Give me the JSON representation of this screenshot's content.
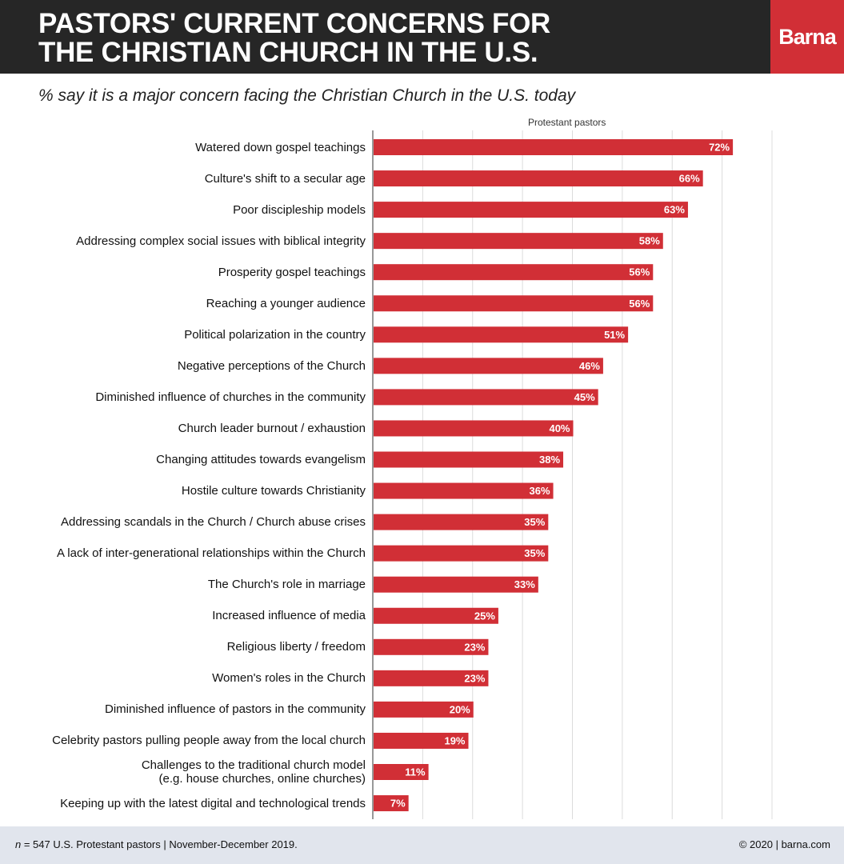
{
  "header": {
    "title_line1": "PASTORS' CURRENT CONCERNS FOR",
    "title_line2": "THE CHRISTIAN CHURCH IN THE U.S.",
    "logo": "Barna"
  },
  "colors": {
    "bar": "#d12f36",
    "header": "#262626",
    "grid": "#dcdcdc"
  },
  "chart_data": {
    "type": "bar",
    "orientation": "horizontal",
    "title": "% say it is a major concern facing the Christian Church in the U.S. today",
    "series_name": "Protestant pastors",
    "xlim": [
      0,
      80
    ],
    "grid": true,
    "categories": [
      "Watered down gospel teachings",
      "Culture's shift to a secular age",
      "Poor discipleship models",
      "Addressing complex social issues with biblical integrity",
      "Prosperity gospel teachings",
      "Reaching a younger audience",
      "Political polarization in the country",
      "Negative perceptions of the Church",
      "Diminished influence of churches in the community",
      "Church leader burnout / exhaustion",
      "Changing attitudes towards evangelism",
      "Hostile culture towards Christianity",
      "Addressing scandals in the Church / Church abuse crises",
      "A lack of inter-generational relationships within the Church",
      "The Church's role in marriage",
      "Increased influence of media",
      "Religious liberty / freedom",
      "Women's roles in the Church",
      "Diminished influence of pastors in the community",
      "Celebrity pastors pulling people away from the local church",
      "Challenges to the traditional church model\n(e.g. house churches, online churches)",
      "Keeping up with the latest digital and technological trends"
    ],
    "values": [
      72,
      66,
      63,
      58,
      56,
      56,
      51,
      46,
      45,
      40,
      38,
      36,
      35,
      35,
      33,
      25,
      23,
      23,
      20,
      19,
      11,
      7
    ],
    "value_suffix": "%"
  },
  "footer": {
    "n_label": "n",
    "sample": " = 547 U.S. Protestant pastors | November-December 2019.",
    "copyright": "© 2020 | barna.com"
  }
}
